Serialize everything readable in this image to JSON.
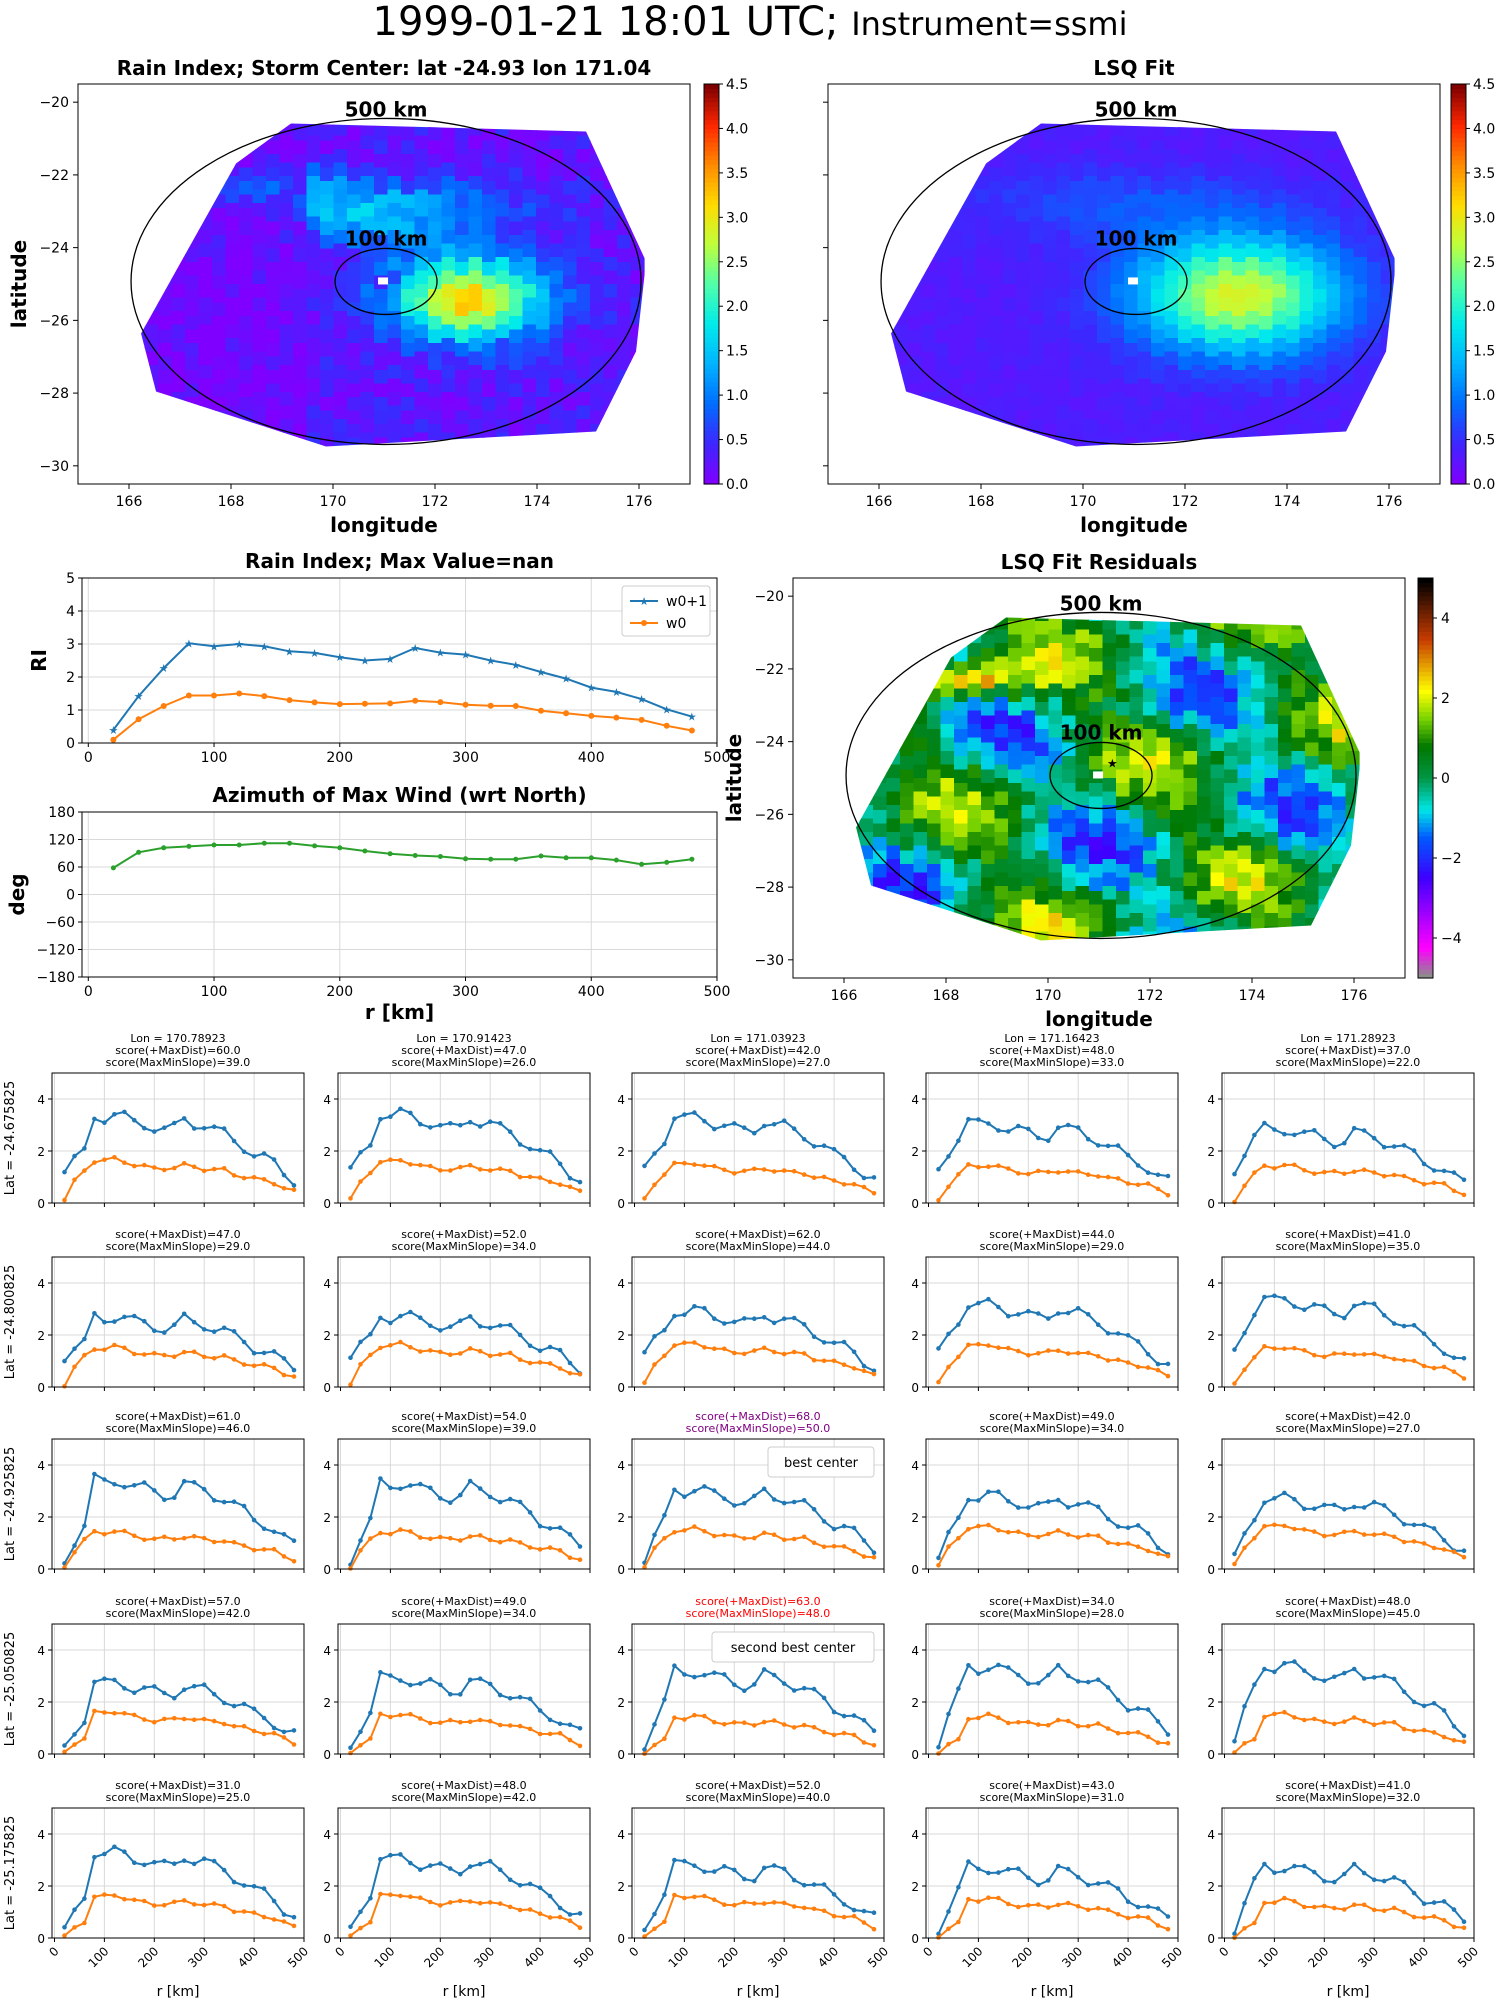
{
  "figure": {
    "title_main": "1999-01-21 18:01 UTC;",
    "title_instrument": "Instrument=ssmi"
  },
  "colors": {
    "w0p1": "#1f77b4",
    "w0": "#ff7f0e",
    "azimuth": "#2ca02c",
    "best": "#800080",
    "second": "#ff0000",
    "grid": "#d9d9d9"
  },
  "map_common": {
    "xlabel": "longitude",
    "ylabel": "latitude",
    "xticks": [
      166,
      168,
      170,
      172,
      174,
      176
    ],
    "yticks": [
      -20,
      -22,
      -24,
      -26,
      -28,
      -30
    ],
    "xlim": [
      165,
      177
    ],
    "ylim": [
      -30.5,
      -19.5
    ],
    "ring_outer_label": "500 km",
    "ring_inner_label": "100 km",
    "center": {
      "lat": -24.93,
      "lon": 171.04
    }
  },
  "maps": [
    {
      "id": "rain-index-map",
      "title": "Rain Index; Storm Center: lat -24.93 lon 171.04",
      "show_xlabel": true,
      "show_ylabel": true,
      "show_yticklabels": true,
      "colormap": "jet",
      "cbar": true
    },
    {
      "id": "lsq-fit-map",
      "title": "LSQ Fit",
      "show_xlabel": true,
      "show_ylabel": false,
      "show_yticklabels": false,
      "colormap": "jet",
      "cbar": true
    },
    {
      "id": "lsq-residuals-map",
      "title": "LSQ Fit Residuals",
      "show_xlabel": true,
      "show_ylabel": true,
      "show_yticklabels": true,
      "colormap": "residual",
      "cbar": true
    }
  ],
  "colorbars": {
    "rain": {
      "min": 0,
      "max": 4.5,
      "ticks": [
        "0.0",
        "0.5",
        "1.0",
        "1.5",
        "2.0",
        "2.5",
        "3.0",
        "3.5",
        "4.0",
        "4.5"
      ]
    },
    "residual": {
      "min": -5,
      "max": 5,
      "ticks": [
        "−4",
        "−2",
        "0",
        "2",
        "4"
      ]
    }
  },
  "rain_profile": {
    "title": "Rain Index; Max Value=nan",
    "ylabel": "RI",
    "ylim": [
      0,
      5
    ],
    "yticks": [
      0,
      1,
      2,
      3,
      4,
      5
    ],
    "xlim": [
      -5,
      500
    ],
    "xticks": [
      0,
      100,
      200,
      300,
      400,
      500
    ],
    "legend": [
      "w0+1",
      "w0"
    ],
    "x": [
      20,
      40,
      60,
      80,
      100,
      120,
      140,
      160,
      180,
      200,
      220,
      240,
      260,
      280,
      300,
      320,
      340,
      360,
      380,
      400,
      420,
      440,
      460,
      480
    ],
    "w0p1": [
      0.4,
      1.42,
      2.27,
      3.02,
      2.93,
      3.0,
      2.93,
      2.78,
      2.73,
      2.6,
      2.5,
      2.55,
      2.88,
      2.74,
      2.68,
      2.5,
      2.37,
      2.15,
      1.95,
      1.68,
      1.55,
      1.33,
      1.02,
      0.8
    ],
    "w0": [
      0.1,
      0.72,
      1.12,
      1.44,
      1.44,
      1.5,
      1.42,
      1.3,
      1.23,
      1.18,
      1.19,
      1.2,
      1.28,
      1.24,
      1.16,
      1.13,
      1.12,
      0.98,
      0.9,
      0.82,
      0.77,
      0.7,
      0.52,
      0.38
    ]
  },
  "azimuth": {
    "title": "Azimuth of Max Wind (wrt North)",
    "ylabel": "deg",
    "xlabel": "r [km]",
    "ylim": [
      -180,
      180
    ],
    "yticks": [
      "180",
      "120",
      "60",
      "0",
      "−60",
      "−120",
      "−180"
    ],
    "xticks": [
      0,
      100,
      200,
      300,
      400,
      500
    ],
    "x": [
      20,
      40,
      60,
      80,
      100,
      120,
      140,
      160,
      180,
      200,
      220,
      240,
      260,
      280,
      300,
      320,
      340,
      360,
      380,
      400,
      420,
      440,
      460,
      480
    ],
    "y": [
      58,
      92,
      102,
      105,
      108,
      108,
      112,
      112,
      106,
      102,
      95,
      89,
      85,
      83,
      78,
      77,
      77,
      84,
      80,
      80,
      75,
      66,
      70,
      77
    ]
  },
  "grid": {
    "row_labels": [
      "Lat = -24.675825",
      "Lat = -24.800825",
      "Lat = -24.925825",
      "Lat = -25.050825",
      "Lat = -25.175825"
    ],
    "col_lons": [
      "Lon = 170.78923",
      "Lon = 170.91423",
      "Lon = 171.03923",
      "Lon = 171.16423",
      "Lon = 171.28923"
    ],
    "xlabel": "r [km]",
    "xticks": [
      0,
      100,
      200,
      300,
      400,
      500
    ],
    "yticks": [
      0,
      2,
      4
    ],
    "ylim": [
      0,
      5
    ],
    "scores": [
      [
        [
          "score(+MaxDist)=60.0",
          "score(MaxMinSlope)=39.0"
        ],
        [
          "score(+MaxDist)=47.0",
          "score(MaxMinSlope)=26.0"
        ],
        [
          "score(+MaxDist)=42.0",
          "score(MaxMinSlope)=27.0"
        ],
        [
          "score(+MaxDist)=48.0",
          "score(MaxMinSlope)=33.0"
        ],
        [
          "score(+MaxDist)=37.0",
          "score(MaxMinSlope)=22.0"
        ]
      ],
      [
        [
          "score(+MaxDist)=47.0",
          "score(MaxMinSlope)=29.0"
        ],
        [
          "score(+MaxDist)=52.0",
          "score(MaxMinSlope)=34.0"
        ],
        [
          "score(+MaxDist)=62.0",
          "score(MaxMinSlope)=44.0"
        ],
        [
          "score(+MaxDist)=44.0",
          "score(MaxMinSlope)=29.0"
        ],
        [
          "score(+MaxDist)=41.0",
          "score(MaxMinSlope)=35.0"
        ]
      ],
      [
        [
          "score(+MaxDist)=61.0",
          "score(MaxMinSlope)=46.0"
        ],
        [
          "score(+MaxDist)=54.0",
          "score(MaxMinSlope)=39.0"
        ],
        [
          "score(+MaxDist)=68.0",
          "score(MaxMinSlope)=50.0"
        ],
        [
          "score(+MaxDist)=49.0",
          "score(MaxMinSlope)=34.0"
        ],
        [
          "score(+MaxDist)=42.0",
          "score(MaxMinSlope)=27.0"
        ]
      ],
      [
        [
          "score(+MaxDist)=57.0",
          "score(MaxMinSlope)=42.0"
        ],
        [
          "score(+MaxDist)=49.0",
          "score(MaxMinSlope)=34.0"
        ],
        [
          "score(+MaxDist)=63.0",
          "score(MaxMinSlope)=48.0"
        ],
        [
          "score(+MaxDist)=34.0",
          "score(MaxMinSlope)=28.0"
        ],
        [
          "score(+MaxDist)=48.0",
          "score(MaxMinSlope)=45.0"
        ]
      ],
      [
        [
          "score(+MaxDist)=31.0",
          "score(MaxMinSlope)=25.0"
        ],
        [
          "score(+MaxDist)=48.0",
          "score(MaxMinSlope)=42.0"
        ],
        [
          "score(+MaxDist)=52.0",
          "score(MaxMinSlope)=40.0"
        ],
        [
          "score(+MaxDist)=43.0",
          "score(MaxMinSlope)=31.0"
        ],
        [
          "score(+MaxDist)=41.0",
          "score(MaxMinSlope)=32.0"
        ]
      ]
    ],
    "highlight": [
      {
        "row": 2,
        "col": 2,
        "color": "#800080",
        "legend": "best center"
      },
      {
        "row": 3,
        "col": 2,
        "color": "#ff0000",
        "legend": "second best center"
      }
    ]
  },
  "chart_data": [
    {
      "type": "heatmap",
      "title": "Rain Index; Storm Center: lat -24.93 lon 171.04",
      "xlabel": "longitude",
      "ylabel": "latitude",
      "xlim": [
        165,
        177
      ],
      "ylim": [
        -30.5,
        -19.5
      ],
      "color_range": [
        0,
        4.5
      ],
      "annotations": [
        "500 km",
        "100 km"
      ]
    },
    {
      "type": "heatmap",
      "title": "LSQ Fit",
      "xlabel": "longitude",
      "xlim": [
        165,
        177
      ],
      "ylim": [
        -30.5,
        -19.5
      ],
      "color_range": [
        0,
        4.5
      ],
      "annotations": [
        "500 km",
        "100 km"
      ]
    },
    {
      "type": "heatmap",
      "title": "LSQ Fit Residuals",
      "xlabel": "longitude",
      "ylabel": "latitude",
      "xlim": [
        165,
        177
      ],
      "ylim": [
        -30.5,
        -19.5
      ],
      "color_range": [
        -5,
        5
      ],
      "annotations": [
        "500 km",
        "100 km"
      ]
    },
    {
      "type": "line",
      "title": "Rain Index; Max Value=nan",
      "ylabel": "RI",
      "x": [
        20,
        40,
        60,
        80,
        100,
        120,
        140,
        160,
        180,
        200,
        220,
        240,
        260,
        280,
        300,
        320,
        340,
        360,
        380,
        400,
        420,
        440,
        460,
        480
      ],
      "series": [
        {
          "name": "w0+1",
          "values": [
            0.4,
            1.42,
            2.27,
            3.02,
            2.93,
            3.0,
            2.93,
            2.78,
            2.73,
            2.6,
            2.5,
            2.55,
            2.88,
            2.74,
            2.68,
            2.5,
            2.37,
            2.15,
            1.95,
            1.68,
            1.55,
            1.33,
            1.02,
            0.8
          ]
        },
        {
          "name": "w0",
          "values": [
            0.1,
            0.72,
            1.12,
            1.44,
            1.44,
            1.5,
            1.42,
            1.3,
            1.23,
            1.18,
            1.19,
            1.2,
            1.28,
            1.24,
            1.16,
            1.13,
            1.12,
            0.98,
            0.9,
            0.82,
            0.77,
            0.7,
            0.52,
            0.38
          ]
        }
      ],
      "ylim": [
        0,
        5
      ],
      "legend": "top-right"
    },
    {
      "type": "line",
      "title": "Azimuth of Max Wind (wrt North)",
      "xlabel": "r [km]",
      "ylabel": "deg",
      "x": [
        20,
        40,
        60,
        80,
        100,
        120,
        140,
        160,
        180,
        200,
        220,
        240,
        260,
        280,
        300,
        320,
        340,
        360,
        380,
        400,
        420,
        440,
        460,
        480
      ],
      "series": [
        {
          "values": [
            58,
            92,
            102,
            105,
            108,
            108,
            112,
            112,
            106,
            102,
            95,
            89,
            85,
            83,
            78,
            77,
            77,
            84,
            80,
            80,
            75,
            66,
            70,
            77
          ]
        }
      ],
      "ylim": [
        -180,
        180
      ]
    }
  ]
}
